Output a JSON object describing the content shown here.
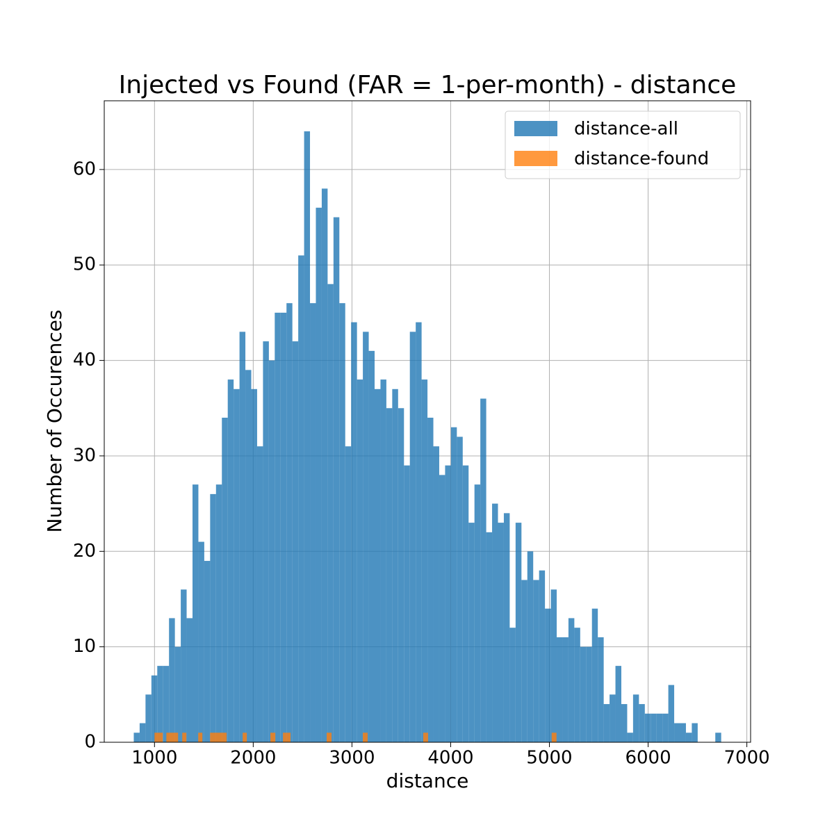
{
  "chart_data": {
    "type": "histogram",
    "title": "Injected vs Found (FAR = 1-per-month) - distance",
    "x_label": "distance",
    "y_label": "Number of Occurences",
    "xlim": [
      491,
      7038
    ],
    "ylim": [
      0,
      67.2
    ],
    "xticks": [
      1000,
      2000,
      3000,
      4000,
      5000,
      6000,
      7000
    ],
    "yticks": [
      0,
      10,
      20,
      30,
      40,
      50,
      60
    ],
    "grid": true,
    "legend": "upper right",
    "alpha": 0.8,
    "series": [
      {
        "name": "distance-all",
        "color": "#1f77b4",
        "bins": [
          790,
          849.5,
          909,
          968.5,
          1028,
          1087.5,
          1147,
          1206.5,
          1266,
          1325.5,
          1385,
          1444.5,
          1504,
          1563.5,
          1623,
          1682.5,
          1742,
          1801.5,
          1861,
          1920.5,
          1980,
          2039.5,
          2099,
          2158.5,
          2218,
          2277.5,
          2337,
          2396.5,
          2456,
          2515.5,
          2575,
          2634.5,
          2694,
          2753.5,
          2813,
          2872.5,
          2932,
          2991.5,
          3051,
          3110.5,
          3170,
          3229.5,
          3289,
          3348.5,
          3408,
          3467.5,
          3527,
          3586.5,
          3646,
          3705.5,
          3765,
          3824.5,
          3884,
          3943.5,
          4003,
          4062.5,
          4122,
          4181.5,
          4241,
          4300.5,
          4360,
          4419.5,
          4479,
          4538.5,
          4598,
          4657.5,
          4717,
          4776.5,
          4836,
          4895.5,
          4955,
          5014.5,
          5074,
          5133.5,
          5193,
          5252.5,
          5312,
          5371.5,
          5431,
          5490.5,
          5550,
          5609.5,
          5669,
          5728.5,
          5788,
          5847.5,
          5907,
          5966.5,
          6026,
          6085.5,
          6145,
          6204.5,
          6264,
          6323.5,
          6383,
          6442.5,
          6502,
          6561.5,
          6621,
          6680.5,
          6740
        ],
        "values": [
          1,
          2,
          5,
          7,
          8,
          8,
          13,
          10,
          16,
          13,
          27,
          21,
          19,
          26,
          27,
          34,
          38,
          37,
          43,
          39,
          37,
          31,
          42,
          40,
          45,
          45,
          46,
          42,
          51,
          64,
          46,
          56,
          58,
          48,
          55,
          46,
          31,
          44,
          38,
          43,
          41,
          37,
          38,
          35,
          37,
          35,
          29,
          43,
          44,
          38,
          34,
          31,
          28,
          29,
          33,
          32,
          29,
          23,
          27,
          36,
          22,
          25,
          23,
          24,
          12,
          23,
          17,
          20,
          17,
          18,
          14,
          16,
          11,
          11,
          13,
          12,
          10,
          10,
          14,
          11,
          4,
          5,
          8,
          4,
          1,
          5,
          4,
          3,
          3,
          3,
          3,
          6,
          2,
          2,
          1,
          2,
          0,
          0,
          0,
          1
        ]
      },
      {
        "name": "distance-found",
        "color": "#ff7f0e",
        "bins": [
          1000,
          1084,
          1120,
          1239,
          1281,
          1323,
          1443,
          1485,
          1563,
          1731,
          1893,
          1935,
          2174,
          2224,
          2301,
          2378,
          2744,
          2793,
          3110,
          3159,
          3722,
          3771,
          5023,
          5072
        ],
        "values": [
          1,
          0,
          1,
          0,
          1,
          0,
          1,
          0,
          1,
          0,
          1,
          0,
          1,
          0,
          1,
          0,
          1,
          0,
          1,
          0,
          1,
          0,
          1
        ]
      }
    ]
  }
}
